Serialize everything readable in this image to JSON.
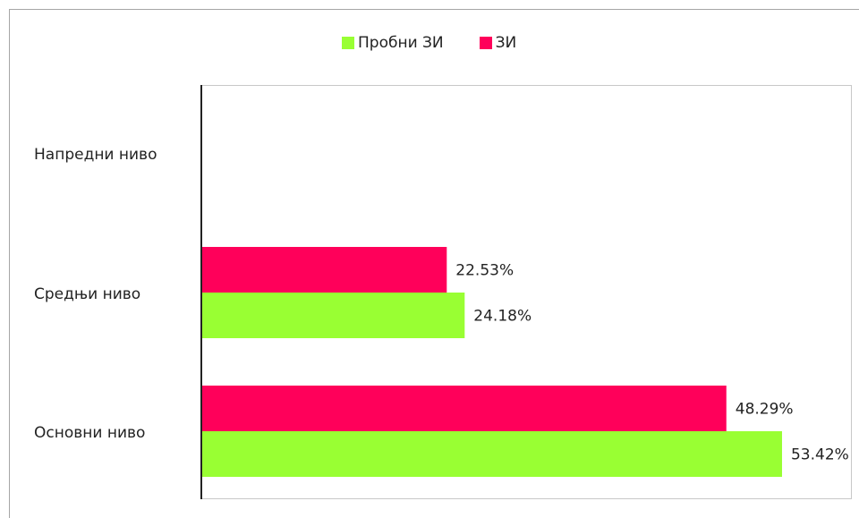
{
  "chart_data": {
    "type": "bar",
    "orientation": "horizontal",
    "categories": [
      "Напредни ниво",
      "Средњи ниво",
      "Основни ниво"
    ],
    "series": [
      {
        "name": "ЗИ",
        "color": "#ff005a",
        "values": [
          null,
          22.53,
          48.29
        ],
        "labels": [
          "",
          "22.53%",
          "48.29%"
        ]
      },
      {
        "name": "Пробни ЗИ",
        "color": "#99ff33",
        "values": [
          null,
          24.18,
          53.42
        ],
        "labels": [
          "",
          "24.18%",
          "53.42%"
        ]
      }
    ],
    "legend": {
      "position": "top",
      "order": [
        "Пробни ЗИ",
        "ЗИ"
      ]
    },
    "xlim": [
      0,
      60
    ],
    "grid": false
  }
}
